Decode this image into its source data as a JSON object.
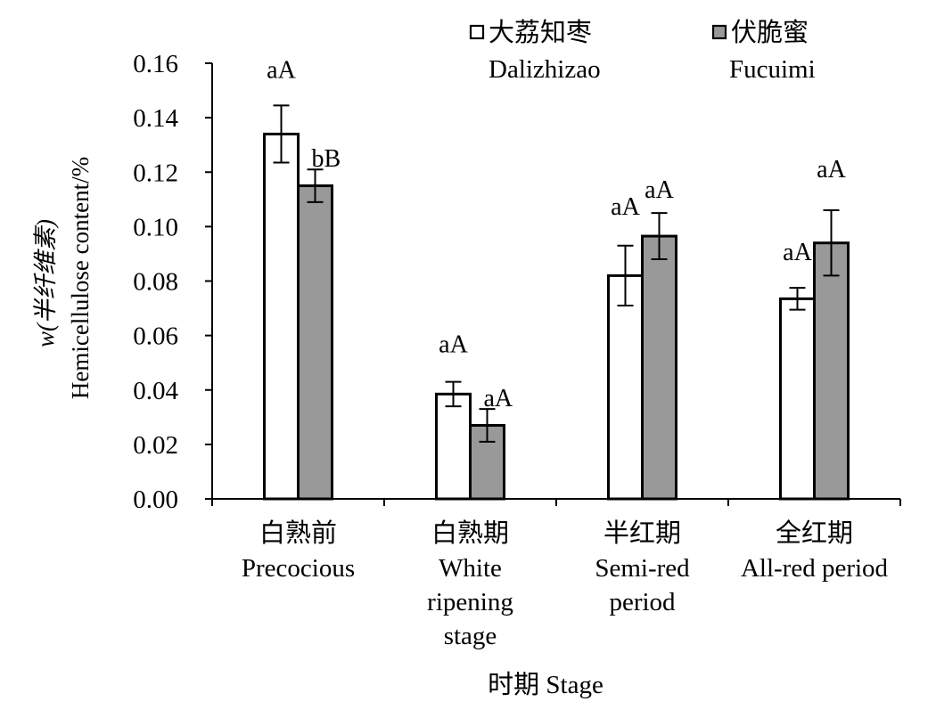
{
  "chart_data": {
    "type": "bar",
    "y_axis": {
      "label_line1": "w(半纤维素)",
      "label_line2": "Hemicellulose content/%",
      "ylim": [
        0,
        0.16
      ],
      "ticks": [
        "0.00",
        "0.02",
        "0.04",
        "0.06",
        "0.08",
        "0.10",
        "0.12",
        "0.14",
        "0.16"
      ]
    },
    "x_axis": {
      "title": "时期 Stage"
    },
    "categories": [
      {
        "cn": "白熟前",
        "en": [
          "Precocious"
        ]
      },
      {
        "cn": "白熟期",
        "en": [
          "White",
          "ripening",
          "stage"
        ]
      },
      {
        "cn": "半红期",
        "en": [
          "Semi-red",
          "period"
        ]
      },
      {
        "cn": "全红期",
        "en": [
          "All-red period"
        ]
      }
    ],
    "series": [
      {
        "name_cn": "大荔知枣",
        "name_en": "Dalizhizao",
        "color": "#ffffff",
        "values": [
          0.134,
          0.0385,
          0.082,
          0.0735
        ],
        "errors": [
          0.0105,
          0.0045,
          0.011,
          0.004
        ],
        "labels": [
          "aA",
          "aA",
          "aA",
          "aA"
        ]
      },
      {
        "name_cn": "伏脆蜜",
        "name_en": "Fucuimi",
        "color": "#999999",
        "values": [
          0.115,
          0.027,
          0.0965,
          0.094
        ],
        "errors": [
          0.006,
          0.006,
          0.0085,
          0.012
        ],
        "labels": [
          "bB",
          "aA",
          "aA",
          "aA"
        ]
      }
    ],
    "legend_position": "top-right",
    "grid": false
  }
}
